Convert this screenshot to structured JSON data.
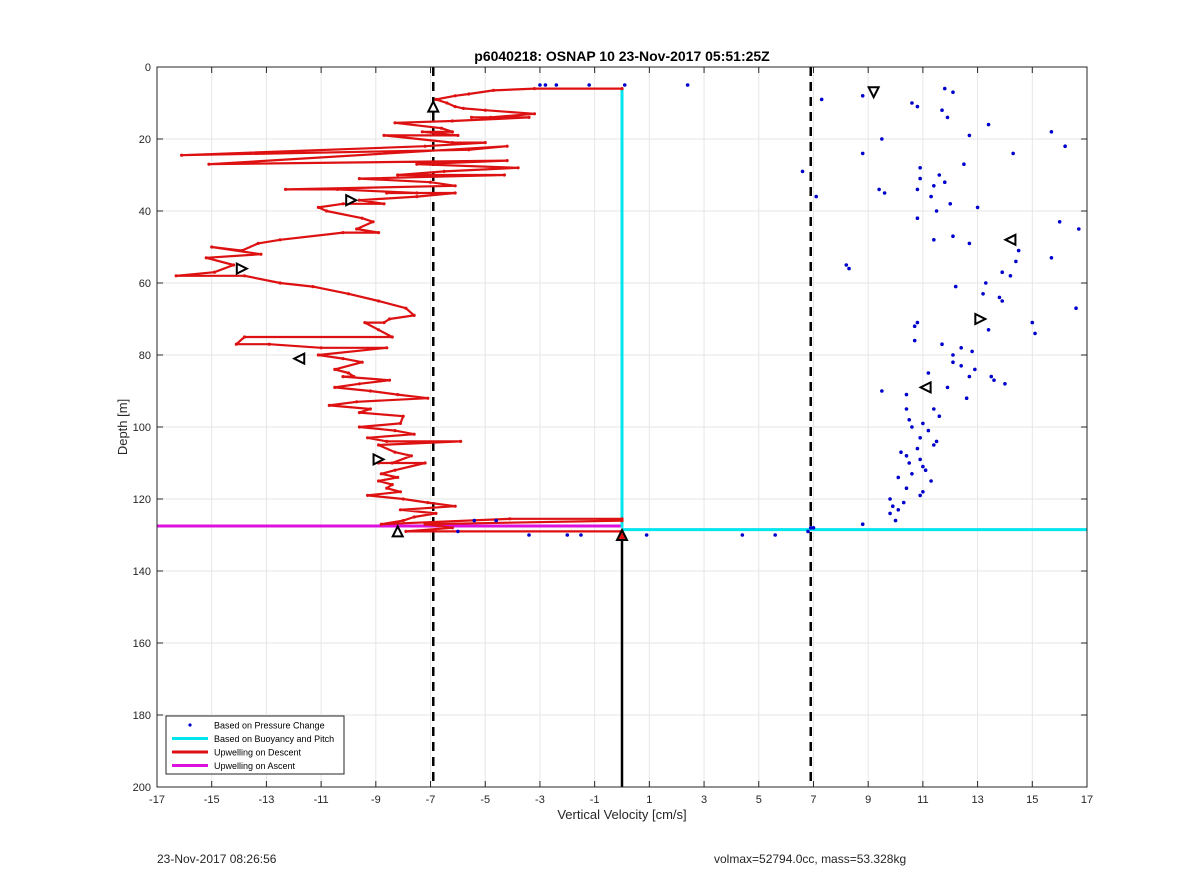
{
  "footer": {
    "timestamp": "23-Nov-2017 08:26:56",
    "info": "volmax=52794.0cc, mass=53.328kg"
  },
  "chart_data": {
    "type": "line",
    "title": "p6040218: OSNAP 10 23-Nov-2017 05:51:25Z",
    "xlabel": "Vertical Velocity [cm/s]",
    "ylabel": "Depth [m]",
    "xlim": [
      -17,
      17
    ],
    "ylim": [
      0,
      200
    ],
    "y_reversed": true,
    "xticks": [
      -17,
      -15,
      -13,
      -11,
      -9,
      -7,
      -5,
      -3,
      -1,
      1,
      3,
      5,
      7,
      9,
      11,
      13,
      15,
      17
    ],
    "yticks": [
      0,
      20,
      40,
      60,
      80,
      100,
      120,
      140,
      160,
      180,
      200
    ],
    "grid": true,
    "legend_position": "bottom-left",
    "colors": {
      "pressure": "#0000cc",
      "buoyancy": "#00e5ee",
      "descent": "#dd1111",
      "ascent": "#dd11dd",
      "reference": "#000000"
    },
    "reference_lines": {
      "dashed_x": [
        -6.9,
        6.9
      ],
      "solid_x": 0.0,
      "solid_y_range": [
        129,
        200
      ]
    },
    "series": [
      {
        "name": "Based on Pressure Change",
        "style": "dots",
        "points": [
          [
            2.4,
            5
          ],
          [
            9.2,
            7
          ],
          [
            7.3,
            9
          ],
          [
            8.8,
            8
          ],
          [
            10.6,
            10
          ],
          [
            11.8,
            6
          ],
          [
            12.1,
            7
          ],
          [
            10.8,
            11
          ],
          [
            11.7,
            12
          ],
          [
            11.9,
            14
          ],
          [
            13.4,
            16
          ],
          [
            15.7,
            18
          ],
          [
            16.2,
            22
          ],
          [
            9.5,
            20
          ],
          [
            12.7,
            19
          ],
          [
            14.3,
            24
          ],
          [
            8.8,
            24
          ],
          [
            12.5,
            27
          ],
          [
            6.6,
            29
          ],
          [
            10.9,
            28
          ],
          [
            11.6,
            30
          ],
          [
            11.8,
            32
          ],
          [
            10.9,
            31
          ],
          [
            11.4,
            33
          ],
          [
            7.1,
            36
          ],
          [
            9.4,
            34
          ],
          [
            9.6,
            35
          ],
          [
            10.8,
            34
          ],
          [
            11.3,
            36
          ],
          [
            12.0,
            38
          ],
          [
            13.0,
            39
          ],
          [
            11.5,
            40
          ],
          [
            10.8,
            42
          ],
          [
            16.0,
            43
          ],
          [
            16.7,
            45
          ],
          [
            12.1,
            47
          ],
          [
            11.4,
            48
          ],
          [
            12.7,
            49
          ],
          [
            14.5,
            51
          ],
          [
            15.7,
            53
          ],
          [
            14.4,
            54
          ],
          [
            8.2,
            55
          ],
          [
            8.3,
            56
          ],
          [
            12.2,
            61
          ],
          [
            13.3,
            60
          ],
          [
            13.9,
            57
          ],
          [
            14.2,
            58
          ],
          [
            13.2,
            63
          ],
          [
            13.8,
            64
          ],
          [
            13.9,
            65
          ],
          [
            16.6,
            67
          ],
          [
            10.8,
            71
          ],
          [
            10.7,
            72
          ],
          [
            15.0,
            71
          ],
          [
            15.1,
            74
          ],
          [
            13.4,
            73
          ],
          [
            10.7,
            76
          ],
          [
            11.7,
            77
          ],
          [
            12.4,
            78
          ],
          [
            12.1,
            80
          ],
          [
            12.8,
            79
          ],
          [
            12.1,
            82
          ],
          [
            12.4,
            83
          ],
          [
            12.9,
            84
          ],
          [
            11.2,
            85
          ],
          [
            12.7,
            86
          ],
          [
            13.6,
            87
          ],
          [
            14.0,
            88
          ],
          [
            13.5,
            86
          ],
          [
            11.9,
            89
          ],
          [
            9.5,
            90
          ],
          [
            10.4,
            91
          ],
          [
            12.6,
            92
          ],
          [
            11.4,
            95
          ],
          [
            10.4,
            95
          ],
          [
            11.6,
            97
          ],
          [
            10.5,
            98
          ],
          [
            11.0,
            99
          ],
          [
            10.6,
            100
          ],
          [
            11.2,
            101
          ],
          [
            10.9,
            103
          ],
          [
            11.5,
            104
          ],
          [
            11.4,
            105
          ],
          [
            10.8,
            106
          ],
          [
            10.2,
            107
          ],
          [
            10.4,
            108
          ],
          [
            10.9,
            109
          ],
          [
            10.5,
            110
          ],
          [
            11.0,
            111
          ],
          [
            11.1,
            112
          ],
          [
            10.6,
            113
          ],
          [
            10.1,
            114
          ],
          [
            11.3,
            115
          ],
          [
            10.4,
            117
          ],
          [
            11.0,
            118
          ],
          [
            10.9,
            119
          ],
          [
            9.8,
            120
          ],
          [
            10.3,
            121
          ],
          [
            9.9,
            122
          ],
          [
            10.1,
            123
          ],
          [
            9.8,
            124
          ],
          [
            10.0,
            126
          ],
          [
            8.8,
            127
          ],
          [
            7.0,
            128
          ],
          [
            -3.0,
            5
          ],
          [
            -2.8,
            5
          ],
          [
            -2.4,
            5
          ],
          [
            -1.2,
            5
          ],
          [
            0.1,
            5
          ],
          [
            -4.6,
            126
          ],
          [
            -5.4,
            126
          ],
          [
            -6.0,
            129
          ],
          [
            -2.0,
            130
          ],
          [
            -1.5,
            130
          ],
          [
            -3.4,
            130
          ],
          [
            0.9,
            130
          ],
          [
            4.4,
            130
          ],
          [
            5.6,
            130
          ],
          [
            6.8,
            129
          ],
          [
            6.9,
            128
          ]
        ]
      },
      {
        "name": "Based on Buoyancy and Pitch",
        "style": "line",
        "segments": [
          [
            [
              0.0,
              6
            ],
            [
              0.0,
              128
            ]
          ],
          [
            [
              0.0,
              128.5
            ],
            [
              17,
              128.5
            ]
          ]
        ]
      },
      {
        "name": "Upwelling on Descent",
        "style": "line-markers",
        "points": [
          [
            0.0,
            6
          ],
          [
            -3.2,
            6
          ],
          [
            -4.7,
            6.5
          ],
          [
            -5.6,
            7.5
          ],
          [
            -6.1,
            8
          ],
          [
            -6.8,
            9
          ],
          [
            -6.4,
            10
          ],
          [
            -6.1,
            11
          ],
          [
            -5.8,
            11.5
          ],
          [
            -5.0,
            12
          ],
          [
            -3.2,
            13
          ],
          [
            -4.8,
            14
          ],
          [
            -5.5,
            14
          ],
          [
            -3.4,
            14
          ],
          [
            -6.2,
            15
          ],
          [
            -8.3,
            15.5
          ],
          [
            -6.6,
            17
          ],
          [
            -6.2,
            18
          ],
          [
            -7.3,
            18
          ],
          [
            -6.0,
            19
          ],
          [
            -8.7,
            19
          ],
          [
            -6.2,
            21
          ],
          [
            -5.0,
            21
          ],
          [
            -7.2,
            22
          ],
          [
            -16.1,
            24.5
          ],
          [
            -5.6,
            23
          ],
          [
            -4.2,
            22
          ],
          [
            -15.1,
            27
          ],
          [
            -4.2,
            26
          ],
          [
            -7.5,
            27
          ],
          [
            -3.8,
            28
          ],
          [
            -6.5,
            29
          ],
          [
            -8.2,
            30
          ],
          [
            -4.3,
            30
          ],
          [
            -9.6,
            31
          ],
          [
            -7.0,
            32
          ],
          [
            -6.1,
            33
          ],
          [
            -12.3,
            34
          ],
          [
            -10.4,
            34
          ],
          [
            -7.5,
            35
          ],
          [
            -8.6,
            35
          ],
          [
            -6.1,
            35
          ],
          [
            -7.5,
            36
          ],
          [
            -9.6,
            37
          ],
          [
            -8.7,
            38
          ],
          [
            -10.2,
            38
          ],
          [
            -11.1,
            39
          ],
          [
            -10.8,
            40
          ],
          [
            -9.5,
            42
          ],
          [
            -9.1,
            43
          ],
          [
            -9.7,
            45
          ],
          [
            -8.9,
            46
          ],
          [
            -10.2,
            46
          ],
          [
            -12.5,
            48
          ],
          [
            -13.3,
            49
          ],
          [
            -13.9,
            51
          ],
          [
            -15.0,
            50
          ],
          [
            -13.2,
            52
          ],
          [
            -15.2,
            53
          ],
          [
            -14.2,
            55
          ],
          [
            -14.9,
            57
          ],
          [
            -16.3,
            58
          ],
          [
            -13.8,
            58
          ],
          [
            -12.5,
            60
          ],
          [
            -11.3,
            61
          ],
          [
            -10.0,
            63
          ],
          [
            -8.9,
            65
          ],
          [
            -7.9,
            67
          ],
          [
            -7.6,
            69
          ],
          [
            -8.5,
            70
          ],
          [
            -8.7,
            71
          ],
          [
            -9.4,
            71
          ],
          [
            -8.9,
            73
          ],
          [
            -8.4,
            75
          ],
          [
            -13.8,
            75
          ],
          [
            -14.1,
            77
          ],
          [
            -12.9,
            77
          ],
          [
            -11.0,
            78
          ],
          [
            -8.6,
            78
          ],
          [
            -11.1,
            80
          ],
          [
            -10.2,
            81
          ],
          [
            -9.5,
            82
          ],
          [
            -10.5,
            84
          ],
          [
            -10.0,
            85
          ],
          [
            -9.8,
            86
          ],
          [
            -10.2,
            86
          ],
          [
            -8.5,
            87
          ],
          [
            -9.6,
            88
          ],
          [
            -10.5,
            89
          ],
          [
            -9.2,
            90
          ],
          [
            -8.2,
            91
          ],
          [
            -7.1,
            92
          ],
          [
            -9.7,
            93
          ],
          [
            -10.7,
            94
          ],
          [
            -9.2,
            95
          ],
          [
            -9.6,
            96
          ],
          [
            -8.0,
            97
          ],
          [
            -8.1,
            99
          ],
          [
            -9.6,
            100
          ],
          [
            -8.3,
            101
          ],
          [
            -7.6,
            102
          ],
          [
            -9.3,
            103
          ],
          [
            -8.6,
            104
          ],
          [
            -5.9,
            104
          ],
          [
            -8.9,
            105
          ],
          [
            -8.3,
            107
          ],
          [
            -7.7,
            108
          ],
          [
            -8.4,
            110
          ],
          [
            -8.9,
            110
          ],
          [
            -7.2,
            110
          ],
          [
            -8.3,
            112
          ],
          [
            -8.8,
            113
          ],
          [
            -8.2,
            114
          ],
          [
            -8.9,
            115
          ],
          [
            -8.4,
            116
          ],
          [
            -8.6,
            117
          ],
          [
            -8.1,
            118
          ],
          [
            -9.3,
            119
          ],
          [
            -8.0,
            120
          ],
          [
            -7.1,
            121
          ],
          [
            -6.1,
            122
          ],
          [
            -8.1,
            123
          ],
          [
            -6.8,
            124
          ],
          [
            -7.6,
            125
          ],
          [
            -8.0,
            126
          ],
          [
            -8.8,
            127
          ],
          [
            -4.1,
            125.5
          ],
          [
            0.0,
            125.5
          ],
          [
            0.0,
            126
          ],
          [
            -7.2,
            127
          ],
          [
            -6.2,
            128
          ],
          [
            -7.9,
            129
          ],
          [
            0.0,
            129
          ]
        ]
      },
      {
        "name": "Upwelling on Ascent",
        "style": "line",
        "segments": [
          [
            [
              -17,
              127.5
            ],
            [
              -0.0,
              127.5
            ]
          ]
        ]
      }
    ],
    "direction_markers": [
      {
        "x": 9.2,
        "y": 7,
        "dir": "down"
      },
      {
        "x": -6.9,
        "y": 11,
        "dir": "up"
      },
      {
        "x": -9.9,
        "y": 37,
        "dir": "right"
      },
      {
        "x": -13.9,
        "y": 56,
        "dir": "right"
      },
      {
        "x": 14.2,
        "y": 48,
        "dir": "left"
      },
      {
        "x": 13.1,
        "y": 70,
        "dir": "right"
      },
      {
        "x": -11.8,
        "y": 81,
        "dir": "left"
      },
      {
        "x": 11.1,
        "y": 89,
        "dir": "left"
      },
      {
        "x": -8.9,
        "y": 109,
        "dir": "right"
      },
      {
        "x": -8.2,
        "y": 129,
        "dir": "up"
      },
      {
        "x": 0.0,
        "y": 130,
        "dir": "up-filled"
      }
    ]
  }
}
